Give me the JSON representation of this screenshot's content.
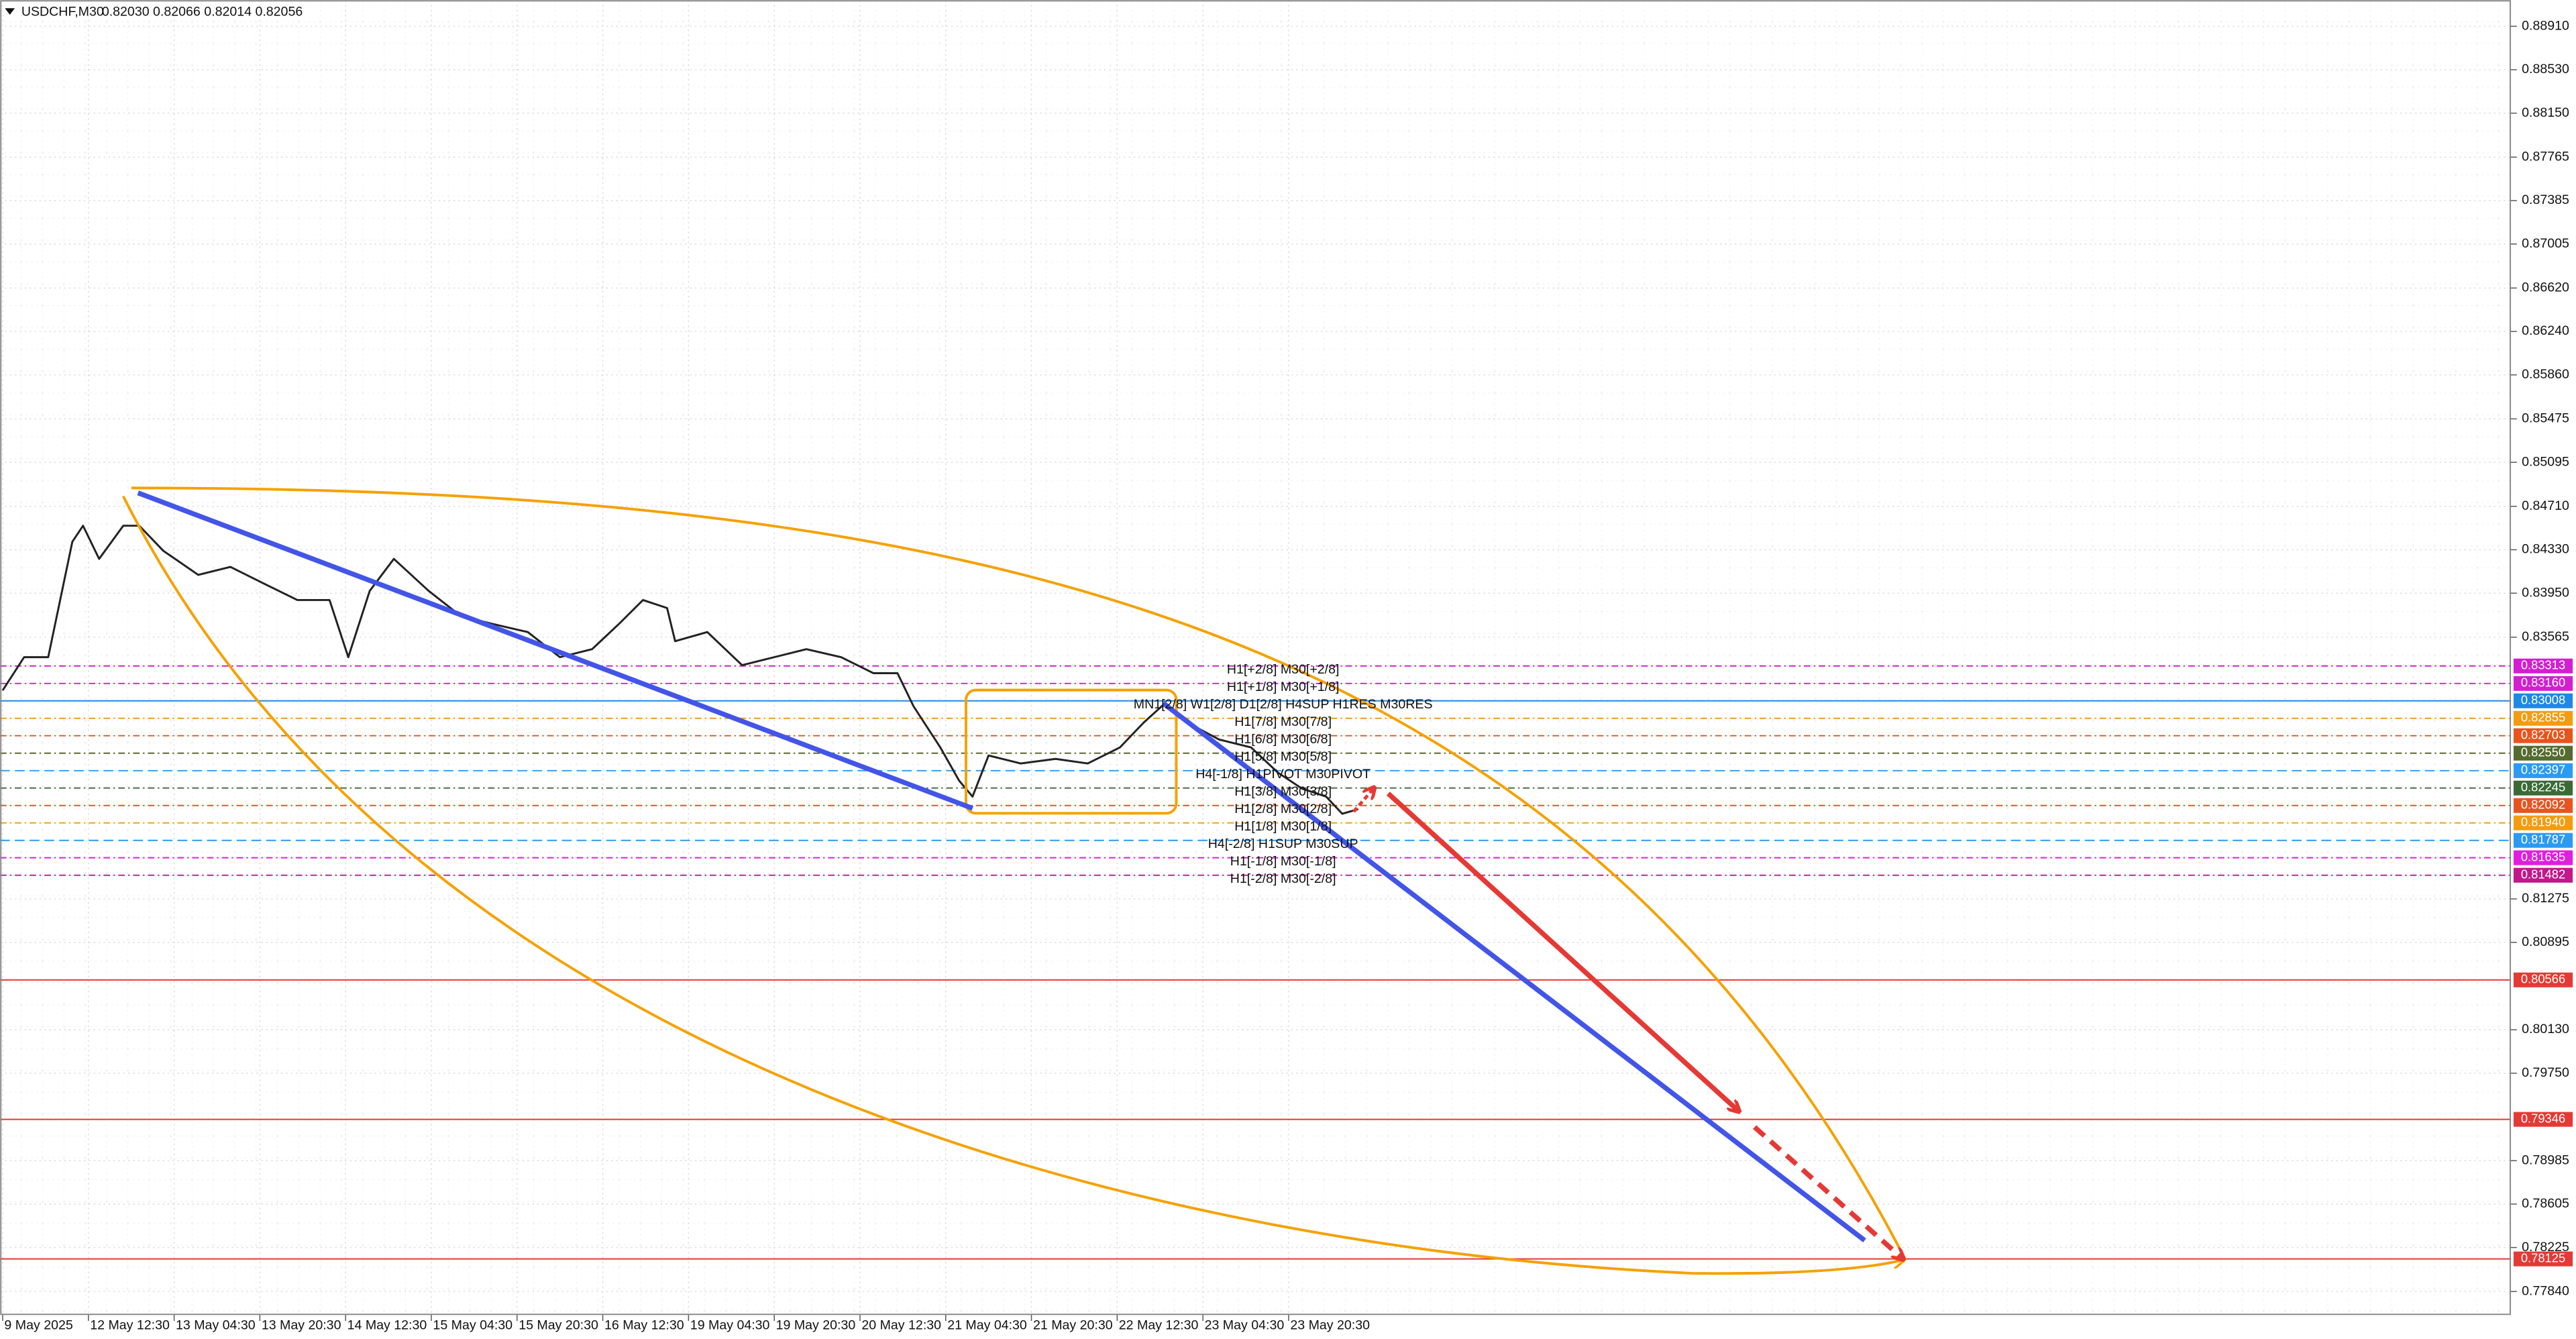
{
  "chart_data": {
    "type": "line",
    "title": "USDCHF,M30",
    "info": "0.82030 0.82066 0.82014 0.82056",
    "xlim": [
      -1,
      936
    ],
    "ylim": [
      0.7764,
      0.8914
    ],
    "grid": true,
    "xticks": [
      {
        "value": 0,
        "label": "9 May 2025"
      },
      {
        "value": 32,
        "label": "12 May 12:30"
      },
      {
        "value": 64,
        "label": "13 May 04:30"
      },
      {
        "value": 96,
        "label": "13 May 20:30"
      },
      {
        "value": 128,
        "label": "14 May 12:30"
      },
      {
        "value": 160,
        "label": "15 May 04:30"
      },
      {
        "value": 192,
        "label": "15 May 20:30"
      },
      {
        "value": 224,
        "label": "16 May 12:30"
      },
      {
        "value": 256,
        "label": "19 May 04:30"
      },
      {
        "value": 288,
        "label": "19 May 20:30"
      },
      {
        "value": 320,
        "label": "20 May 12:30"
      },
      {
        "value": 352,
        "label": "21 May 04:30"
      },
      {
        "value": 384,
        "label": "21 May 20:30"
      },
      {
        "value": 416,
        "label": "22 May 12:30"
      },
      {
        "value": 448,
        "label": "23 May 04:30"
      },
      {
        "value": 480,
        "label": "23 May 20:30"
      }
    ],
    "yticks": [
      {
        "value": 0.8891,
        "label": "0.88910"
      },
      {
        "value": 0.8853,
        "label": "0.88530"
      },
      {
        "value": 0.8815,
        "label": "0.88150"
      },
      0.87765,
      0.87385,
      0.87005,
      {
        "value": 0.8662,
        "label": "0.86620"
      },
      {
        "value": 0.8624,
        "label": "0.86240"
      },
      {
        "value": 0.8586,
        "label": "0.85860"
      },
      0.85475,
      0.85095,
      {
        "value": 0.8471,
        "label": "0.84710"
      },
      {
        "value": 0.8433,
        "label": "0.84330"
      },
      {
        "value": 0.8395,
        "label": "0.83950"
      },
      0.83565,
      0.81275,
      0.80895,
      {
        "value": 0.8013,
        "label": "0.80130"
      },
      {
        "value": 0.7975,
        "label": "0.79750"
      },
      0.78985,
      0.78605,
      0.78225,
      {
        "value": 0.7784,
        "label": "0.77840"
      }
    ],
    "x": [
      0,
      8,
      17,
      26,
      30,
      36,
      45,
      51,
      60,
      73,
      85,
      97,
      110,
      122,
      129,
      137,
      146,
      159,
      171,
      183,
      196,
      208,
      220,
      230,
      239,
      248,
      251,
      263,
      276,
      288,
      300,
      313,
      325,
      334,
      340,
      350,
      357,
      362,
      368,
      380,
      393,
      405,
      417,
      426,
      434,
      442,
      454,
      466,
      476,
      485,
      494,
      500,
      506
    ],
    "series": [
      {
        "color": "#222222",
        "values": [
          0.831,
          0.8339,
          0.8339,
          0.844,
          0.8454,
          0.8425,
          0.8454,
          0.8454,
          0.8432,
          0.8411,
          0.8418,
          0.8404,
          0.8389,
          0.8389,
          0.8339,
          0.8397,
          0.8425,
          0.8397,
          0.8375,
          0.8368,
          0.8361,
          0.8339,
          0.8346,
          0.8368,
          0.8389,
          0.8382,
          0.8353,
          0.8361,
          0.8332,
          0.8339,
          0.8346,
          0.8339,
          0.8325,
          0.8325,
          0.8296,
          0.826,
          0.8231,
          0.8217,
          0.8253,
          0.8246,
          0.825,
          0.8246,
          0.826,
          0.8282,
          0.8299,
          0.8282,
          0.8267,
          0.826,
          0.8238,
          0.8224,
          0.8217,
          0.8202,
          0.8206
        ]
      }
    ],
    "levels": [
      {
        "value": 0.83313,
        "label": "0.83313",
        "color": "#d21fd2",
        "dash": "4 2 1 2",
        "text": "H1[+2/8] M30[+2/8]"
      },
      {
        "value": 0.8316,
        "label": "0.83160",
        "color": "#d21fd2",
        "dash": "4 2 1 2",
        "text": "H1[+1/8] M30[+1/8]"
      },
      {
        "value": 0.83008,
        "label": "0.83008",
        "color": "#1e88e5",
        "dash": "none",
        "text": "MN1[2/8] W1[2/8] D1[2/8] H4SUP H1RES M30RES"
      },
      {
        "value": 0.82855,
        "label": "0.82855",
        "color": "#f39c12",
        "dash": "4 2 1 2",
        "text": "H1[7/8] M30[7/8]"
      },
      {
        "value": 0.82703,
        "label": "0.82703",
        "color": "#e8541e",
        "dash": "4 2 1 2",
        "text": "H1[6/8] M30[6/8]"
      },
      {
        "value": 0.8255,
        "label": "0.82550",
        "color": "#556b2f",
        "dash": "4 2 1 2",
        "text": "H1[5/8] M30[5/8]"
      },
      {
        "value": 0.82397,
        "label": "0.82397",
        "color": "#2b9af3",
        "dash": "6 3",
        "text": "H4[-1/8] H1PIVOT M30PIVOT"
      },
      {
        "value": 0.82245,
        "label": "0.82245",
        "color": "#3a6b35",
        "dash": "4 2 1 2",
        "text": "H1[3/8] M30[3/8]"
      },
      {
        "value": 0.82092,
        "label": "0.82092",
        "color": "#e8541e",
        "dash": "4 2 1 2",
        "text": "H1[2/8] M30[2/8]"
      },
      {
        "value": 0.8194,
        "label": "0.81940",
        "color": "#f39c12",
        "dash": "4 2 1 2",
        "text": "H1[1/8] M30[1/8]"
      },
      {
        "value": 0.81787,
        "label": "0.81787",
        "color": "#2b9af3",
        "dash": "6 3",
        "text": "H4[-2/8] H1SUP M30SUP"
      },
      {
        "value": 0.81635,
        "label": "0.81635",
        "color": "#e01ee0",
        "dash": "4 2 1 2",
        "text": "H1[-1/8] M30[-1/8]"
      },
      {
        "value": 0.81482,
        "label": "0.81482",
        "color": "#c2188b",
        "dash": "4 2 1 2",
        "text": "H1[-2/8] M30[-2/8]"
      },
      {
        "value": 0.80566,
        "label": "0.80566",
        "color": "#e53935",
        "dash": "none"
      },
      {
        "value": 0.79346,
        "label": "0.79346",
        "color": "#e53935",
        "dash": "none"
      },
      {
        "value": 0.78125,
        "label": "0.78125",
        "color": "#e53935",
        "dash": "none"
      }
    ]
  }
}
